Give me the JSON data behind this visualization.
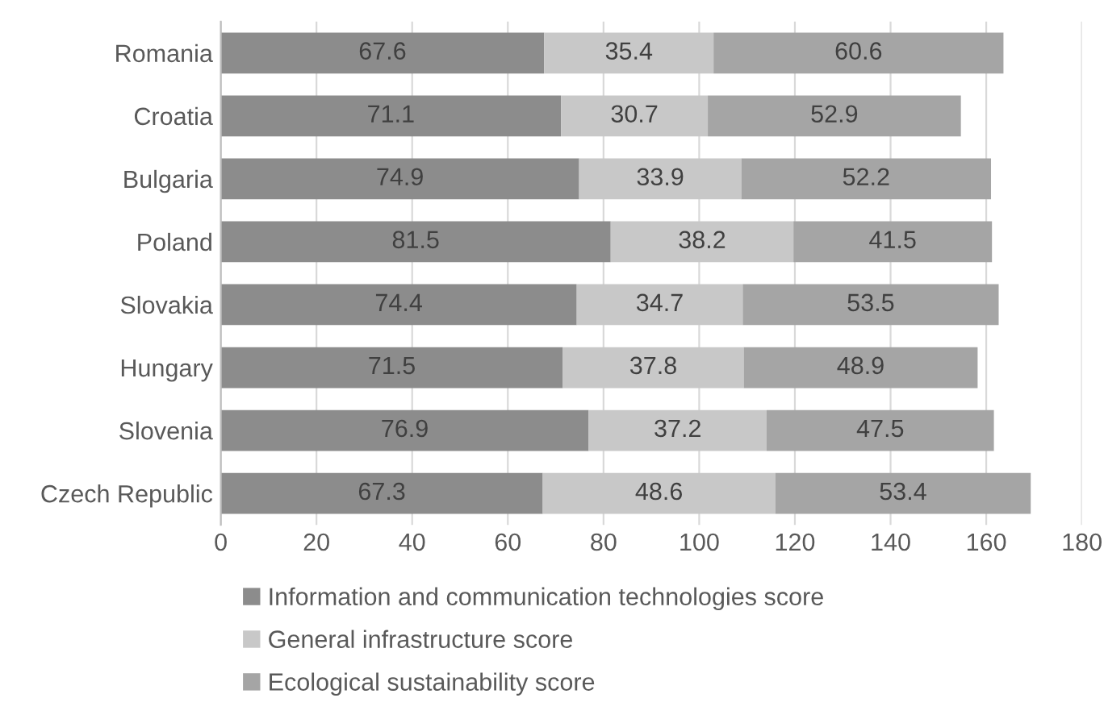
{
  "chart_data": {
    "type": "bar",
    "orientation": "horizontal",
    "stacked": true,
    "data_labels": true,
    "grid": "x",
    "legend": "bottom",
    "categories": [
      "Romania",
      "Croatia",
      "Bulgaria",
      "Poland",
      "Slovakia",
      "Hungary",
      "Slovenia",
      "Czech Republic"
    ],
    "series": [
      {
        "name": "Information and communication technologies score",
        "color": "#8c8c8c",
        "values": [
          67.6,
          71.1,
          74.9,
          81.5,
          74.4,
          71.5,
          76.9,
          67.3
        ]
      },
      {
        "name": "General infrastructure score",
        "color": "#c8c8c8",
        "values": [
          35.4,
          30.7,
          33.9,
          38.2,
          34.7,
          37.8,
          37.2,
          48.6
        ]
      },
      {
        "name": "Ecological sustainability score",
        "color": "#a5a5a5",
        "values": [
          60.6,
          52.9,
          52.2,
          41.5,
          53.5,
          48.9,
          47.5,
          53.4
        ]
      }
    ],
    "xlim": [
      0,
      180
    ],
    "xticks": [
      0,
      20,
      40,
      60,
      80,
      100,
      120,
      140,
      160,
      180
    ]
  }
}
